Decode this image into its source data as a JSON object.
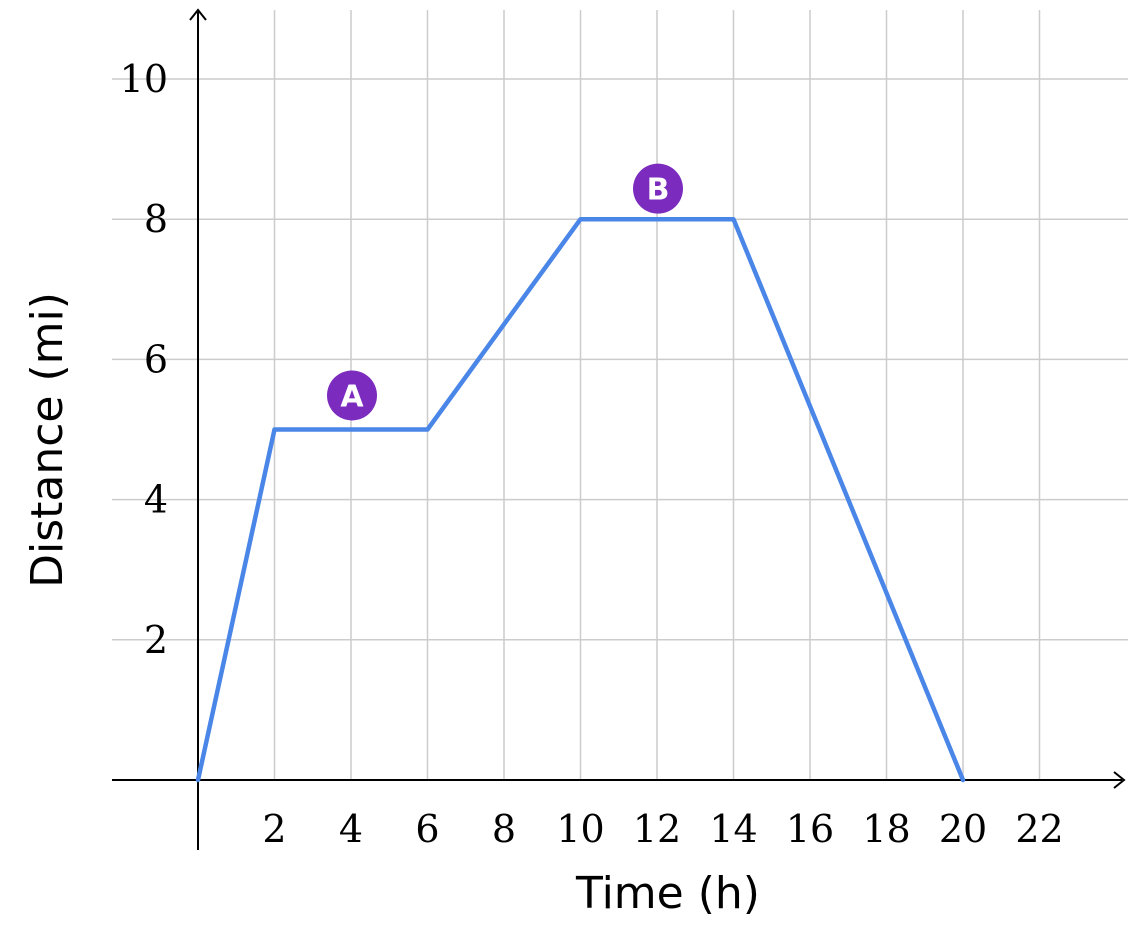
{
  "chart_data": {
    "type": "line",
    "title": "",
    "xlabel": "Time (h)",
    "ylabel": "Distance (mi)",
    "xlim": [
      0,
      24
    ],
    "ylim": [
      0,
      11
    ],
    "x_ticks": [
      2,
      4,
      6,
      8,
      10,
      12,
      14,
      16,
      18,
      20,
      22
    ],
    "y_ticks": [
      2,
      4,
      6,
      8,
      10
    ],
    "grid": true,
    "series": [
      {
        "x": [
          0,
          2,
          6,
          10,
          14,
          20
        ],
        "y": [
          0,
          5,
          5,
          8,
          8,
          0
        ],
        "color": "#4a86e8"
      }
    ],
    "annotations": [
      {
        "label": "A",
        "x": 4,
        "y": 5.5,
        "color": "#7b2cbf"
      },
      {
        "label": "B",
        "x": 12,
        "y": 8.45,
        "color": "#7b2cbf"
      }
    ]
  }
}
